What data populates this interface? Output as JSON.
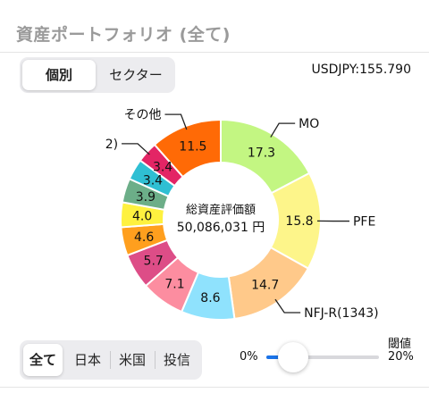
{
  "header": {
    "title": "資産ポートフォリオ (全て)"
  },
  "view_tabs": [
    {
      "label": "個別",
      "selected": true
    },
    {
      "label": "セクター",
      "selected": false
    }
  ],
  "fx_rate": "USDJPY:155.790",
  "center": {
    "caption": "総資産評価額",
    "total": "50,086,031 円"
  },
  "chart_data": {
    "type": "pie",
    "donut": true,
    "slices": [
      {
        "label": "MO",
        "value": 17.3,
        "color": "#c3f682"
      },
      {
        "label": "PFE",
        "value": 15.8,
        "color": "#fdf58a"
      },
      {
        "label": "NFJ-R(1343)",
        "value": 14.7,
        "color": "#ffc98a"
      },
      {
        "label": "",
        "value": 8.6,
        "color": "#8fe2fd"
      },
      {
        "label": "",
        "value": 7.1,
        "color": "#fc8da0"
      },
      {
        "label": "",
        "value": 5.7,
        "color": "#dd4d87"
      },
      {
        "label": "",
        "value": 4.6,
        "color": "#ff9f1e"
      },
      {
        "label": "",
        "value": 4.0,
        "color": "#fef13f"
      },
      {
        "label": "",
        "value": 3.9,
        "color": "#6cae88"
      },
      {
        "label": "",
        "value": 3.4,
        "color": "#2fbfd3"
      },
      {
        "label": "2)",
        "value": 3.4,
        "color": "#e32565"
      },
      {
        "label": "その他",
        "value": 11.5,
        "color": "#ff6a06"
      }
    ]
  },
  "market_tabs": [
    {
      "label": "全て",
      "selected": true
    },
    {
      "label": "日本",
      "selected": false
    },
    {
      "label": "米国",
      "selected": false
    },
    {
      "label": "投信",
      "selected": false
    }
  ],
  "threshold": {
    "label": "閾値",
    "min_label": "0%",
    "max_label": "20%",
    "value_fraction": 0.24
  },
  "colors": {
    "accent": "#1a73e8",
    "title_gray": "#9a9a9a"
  }
}
